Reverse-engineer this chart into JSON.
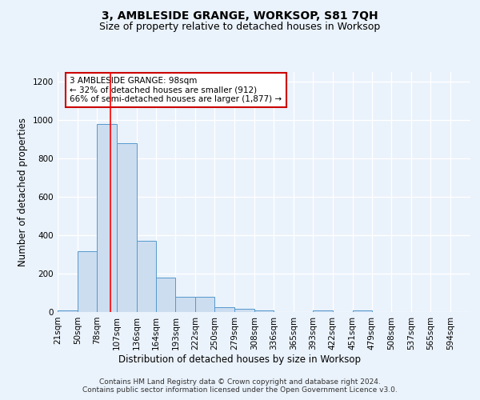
{
  "title": "3, AMBLESIDE GRANGE, WORKSOP, S81 7QH",
  "subtitle": "Size of property relative to detached houses in Worksop",
  "xlabel": "Distribution of detached houses by size in Worksop",
  "ylabel": "Number of detached properties",
  "bin_labels": [
    "21sqm",
    "50sqm",
    "78sqm",
    "107sqm",
    "136sqm",
    "164sqm",
    "193sqm",
    "222sqm",
    "250sqm",
    "279sqm",
    "308sqm",
    "336sqm",
    "365sqm",
    "393sqm",
    "422sqm",
    "451sqm",
    "479sqm",
    "508sqm",
    "537sqm",
    "565sqm",
    "594sqm"
  ],
  "bin_edges": [
    21,
    50,
    78,
    107,
    136,
    164,
    193,
    222,
    250,
    279,
    308,
    336,
    365,
    393,
    422,
    451,
    479,
    508,
    537,
    565,
    594,
    623
  ],
  "bar_heights": [
    10,
    315,
    980,
    880,
    370,
    180,
    80,
    80,
    25,
    15,
    10,
    0,
    0,
    10,
    0,
    10,
    0,
    0,
    0,
    0,
    0
  ],
  "bar_color": "#ccddf0",
  "bar_edge_color": "#5599cc",
  "red_line_x": 98,
  "ylim": [
    0,
    1250
  ],
  "yticks": [
    0,
    200,
    400,
    600,
    800,
    1000,
    1200
  ],
  "annotation_title": "3 AMBLESIDE GRANGE: 98sqm",
  "annotation_line1": "← 32% of detached houses are smaller (912)",
  "annotation_line2": "66% of semi-detached houses are larger (1,877) →",
  "annotation_box_color": "#ffffff",
  "annotation_box_edge": "#cc0000",
  "footer_line1": "Contains HM Land Registry data © Crown copyright and database right 2024.",
  "footer_line2": "Contains public sector information licensed under the Open Government Licence v3.0.",
  "background_color": "#eaf2fb",
  "grid_color": "#ffffff",
  "title_fontsize": 10,
  "subtitle_fontsize": 9,
  "axis_label_fontsize": 8.5,
  "tick_fontsize": 7.5,
  "annotation_fontsize": 7.5,
  "footer_fontsize": 6.5
}
